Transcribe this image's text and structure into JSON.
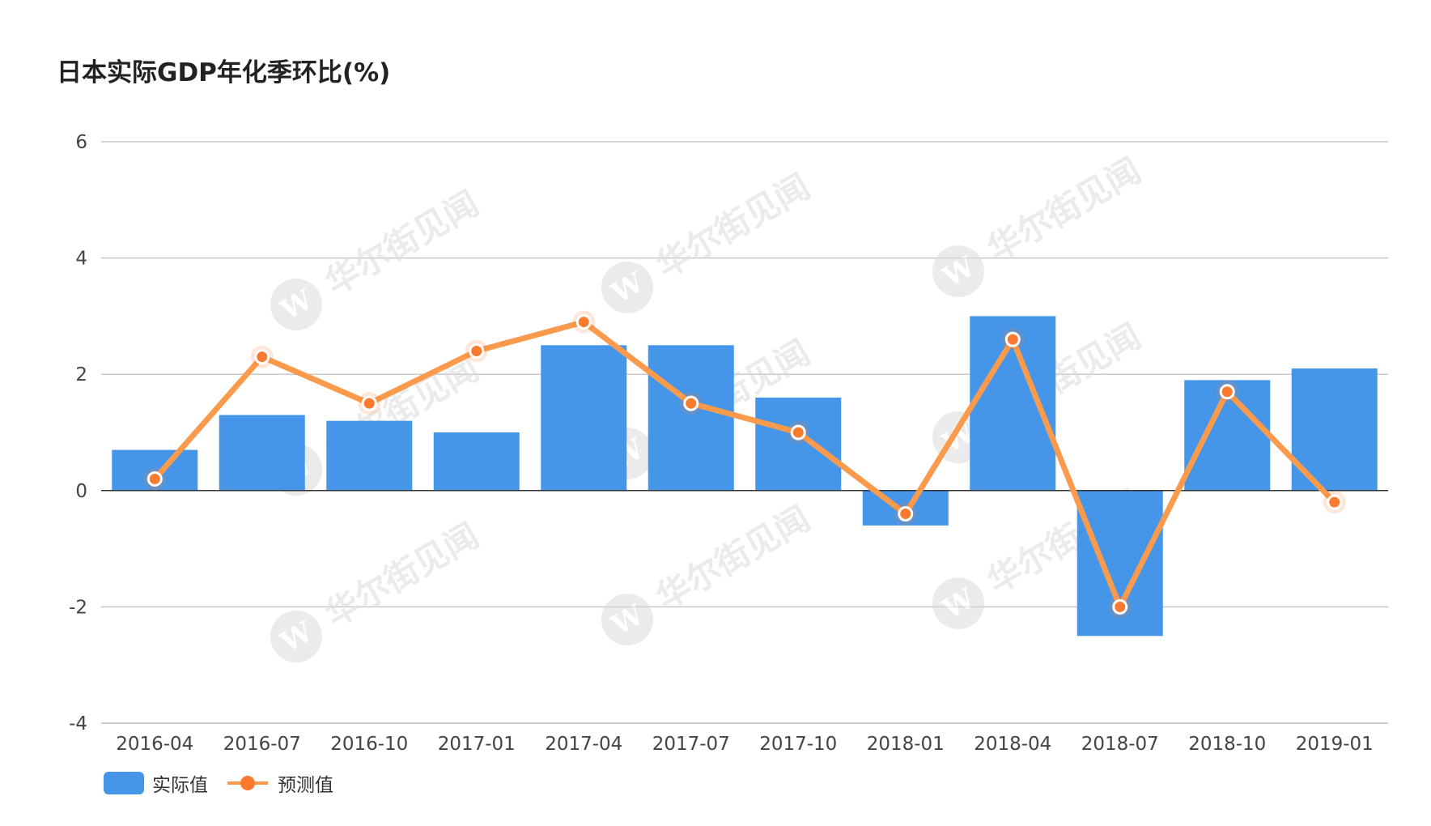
{
  "colors": {
    "bar": "#4596e8",
    "line": "#fa9a4c",
    "marker": "#fa7a2f",
    "grid": "#c8c8c8",
    "axis": "#333333",
    "text": "#444444",
    "watermark": "#dcdcdc"
  },
  "chart_data": {
    "type": "bar",
    "title": "日本实际GDP年化季环比(%)",
    "categories": [
      "2016-04",
      "2016-07",
      "2016-10",
      "2017-01",
      "2017-04",
      "2017-07",
      "2017-10",
      "2018-01",
      "2018-04",
      "2018-07",
      "2018-10",
      "2019-01"
    ],
    "ylim": [
      -4,
      6
    ],
    "yticks": [
      -4,
      -2,
      0,
      2,
      4,
      6
    ],
    "grid": true,
    "legend_position": "bottom-left",
    "series": [
      {
        "name": "实际值",
        "kind": "bar",
        "values": [
          0.7,
          1.3,
          1.2,
          1.0,
          2.5,
          2.5,
          1.6,
          -0.6,
          3.0,
          -2.5,
          1.9,
          2.1
        ]
      },
      {
        "name": "预测值",
        "kind": "line",
        "values": [
          0.2,
          2.3,
          1.5,
          2.4,
          2.9,
          1.5,
          1.0,
          -0.4,
          2.6,
          -2.0,
          1.7,
          -0.2
        ]
      }
    ]
  },
  "watermark": {
    "text": "华尔街见闻",
    "logo_letter": "W"
  }
}
